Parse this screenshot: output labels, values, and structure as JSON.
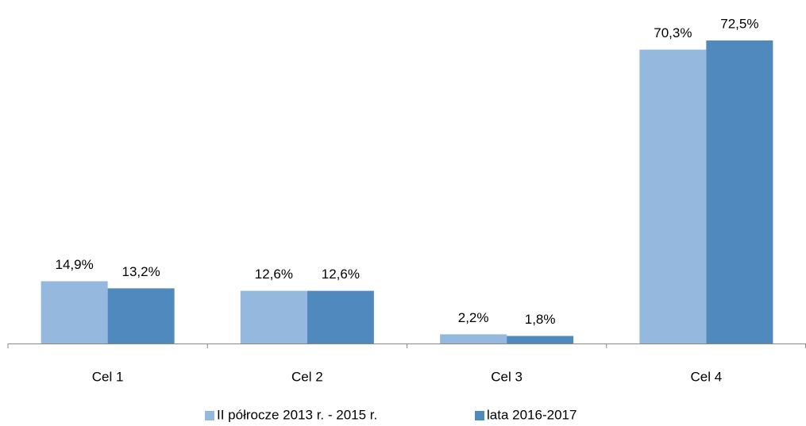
{
  "chart_data": {
    "type": "bar",
    "categories": [
      "Cel 1",
      "Cel 2",
      "Cel 3",
      "Cel 4"
    ],
    "series": [
      {
        "name": "II półrocze 2013 r. - 2015 r.",
        "color": "#95b8de",
        "values": [
          14.9,
          12.6,
          2.2,
          70.3
        ],
        "value_labels": [
          "14,9%",
          "12,6%",
          "2,2%",
          "70,3%"
        ]
      },
      {
        "name": "lata 2016-2017",
        "color": "#4f89bd",
        "values": [
          13.2,
          12.6,
          1.8,
          72.5
        ],
        "value_labels": [
          "13,2%",
          "12,6%",
          "1,8%",
          "72,5%"
        ]
      }
    ],
    "legend": "bottom"
  }
}
